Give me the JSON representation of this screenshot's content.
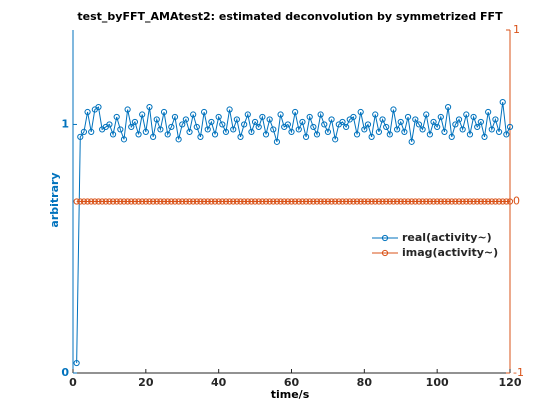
{
  "chart_data": {
    "type": "line",
    "title": "test_byFFT_AMAtest2:  estimated deconvolution by symmetrized FFT",
    "xlabel": "time/s",
    "ylabel": "arbitrary",
    "x": [
      1,
      2,
      3,
      4,
      5,
      6,
      7,
      8,
      9,
      10,
      11,
      12,
      13,
      14,
      15,
      16,
      17,
      18,
      19,
      20,
      21,
      22,
      23,
      24,
      25,
      26,
      27,
      28,
      29,
      30,
      31,
      32,
      33,
      34,
      35,
      36,
      37,
      38,
      39,
      40,
      41,
      42,
      43,
      44,
      45,
      46,
      47,
      48,
      49,
      50,
      51,
      52,
      53,
      54,
      55,
      56,
      57,
      58,
      59,
      60,
      61,
      62,
      63,
      64,
      65,
      66,
      67,
      68,
      69,
      70,
      71,
      72,
      73,
      74,
      75,
      76,
      77,
      78,
      79,
      80,
      81,
      82,
      83,
      84,
      85,
      86,
      87,
      88,
      89,
      90,
      91,
      92,
      93,
      94,
      95,
      96,
      97,
      98,
      99,
      100,
      101,
      102,
      103,
      104,
      105,
      106,
      107,
      108,
      109,
      110,
      111,
      112,
      113,
      114,
      115,
      116,
      117,
      118,
      119,
      120
    ],
    "series": [
      {
        "name": "real(activity~)",
        "color": "#0072bd",
        "axis": "y",
        "values": [
          0.04,
          0.95,
          0.97,
          1.05,
          0.97,
          1.06,
          1.07,
          0.98,
          0.99,
          1.0,
          0.96,
          1.03,
          0.98,
          0.94,
          1.06,
          0.99,
          1.01,
          0.96,
          1.04,
          0.97,
          1.07,
          0.95,
          1.02,
          0.98,
          1.05,
          0.96,
          0.99,
          1.03,
          0.94,
          1.0,
          1.02,
          0.97,
          1.04,
          0.99,
          0.95,
          1.05,
          0.98,
          1.01,
          0.96,
          1.03,
          1.0,
          0.97,
          1.06,
          0.98,
          1.02,
          0.95,
          1.0,
          1.04,
          0.97,
          1.01,
          0.99,
          1.03,
          0.96,
          1.02,
          0.98,
          0.93,
          1.04,
          0.99,
          1.0,
          0.97,
          1.05,
          0.98,
          1.01,
          0.95,
          1.03,
          0.99,
          0.96,
          1.04,
          1.0,
          0.97,
          1.02,
          0.94,
          1.0,
          1.01,
          0.99,
          1.02,
          1.03,
          0.96,
          1.05,
          0.98,
          1.0,
          0.95,
          1.04,
          0.97,
          1.02,
          0.99,
          0.96,
          1.06,
          0.98,
          1.01,
          0.97,
          1.03,
          0.93,
          1.02,
          1.0,
          0.98,
          1.04,
          0.96,
          1.01,
          0.99,
          1.03,
          0.97,
          1.07,
          0.95,
          1.0,
          1.02,
          0.98,
          1.04,
          0.96,
          1.03,
          0.99,
          1.01,
          0.95,
          1.05,
          0.98,
          1.02,
          0.97,
          1.09,
          0.96,
          0.99
        ]
      },
      {
        "name": "imag(activity~)",
        "color": "#d95319",
        "axis": "y2",
        "values": [
          0,
          0,
          0,
          0,
          0,
          0,
          0,
          0,
          0,
          0,
          0,
          0,
          0,
          0,
          0,
          0,
          0,
          0,
          0,
          0,
          0,
          0,
          0,
          0,
          0,
          0,
          0,
          0,
          0,
          0,
          0,
          0,
          0,
          0,
          0,
          0,
          0,
          0,
          0,
          0,
          0,
          0,
          0,
          0,
          0,
          0,
          0,
          0,
          0,
          0,
          0,
          0,
          0,
          0,
          0,
          0,
          0,
          0,
          0,
          0,
          0,
          0,
          0,
          0,
          0,
          0,
          0,
          0,
          0,
          0,
          0,
          0,
          0,
          0,
          0,
          0,
          0,
          0,
          0,
          0,
          0,
          0,
          0,
          0,
          0,
          0,
          0,
          0,
          0,
          0,
          0,
          0,
          0,
          0,
          0,
          0,
          0,
          0,
          0,
          0,
          0,
          0,
          0,
          0,
          0,
          0,
          0,
          0,
          0,
          0,
          0,
          0,
          0,
          0,
          0,
          0,
          0,
          0,
          0,
          0
        ]
      }
    ],
    "xlim": [
      0,
      120
    ],
    "xticks": [
      0,
      20,
      40,
      60,
      80,
      100,
      120
    ],
    "ylim": [
      0,
      1.38
    ],
    "yticks": [
      0,
      1
    ],
    "y2lim": [
      -1,
      1
    ],
    "y2ticks": [
      -1,
      0,
      1
    ],
    "y_color": "#0072bd",
    "y2_color": "#d95319",
    "grid": false
  }
}
